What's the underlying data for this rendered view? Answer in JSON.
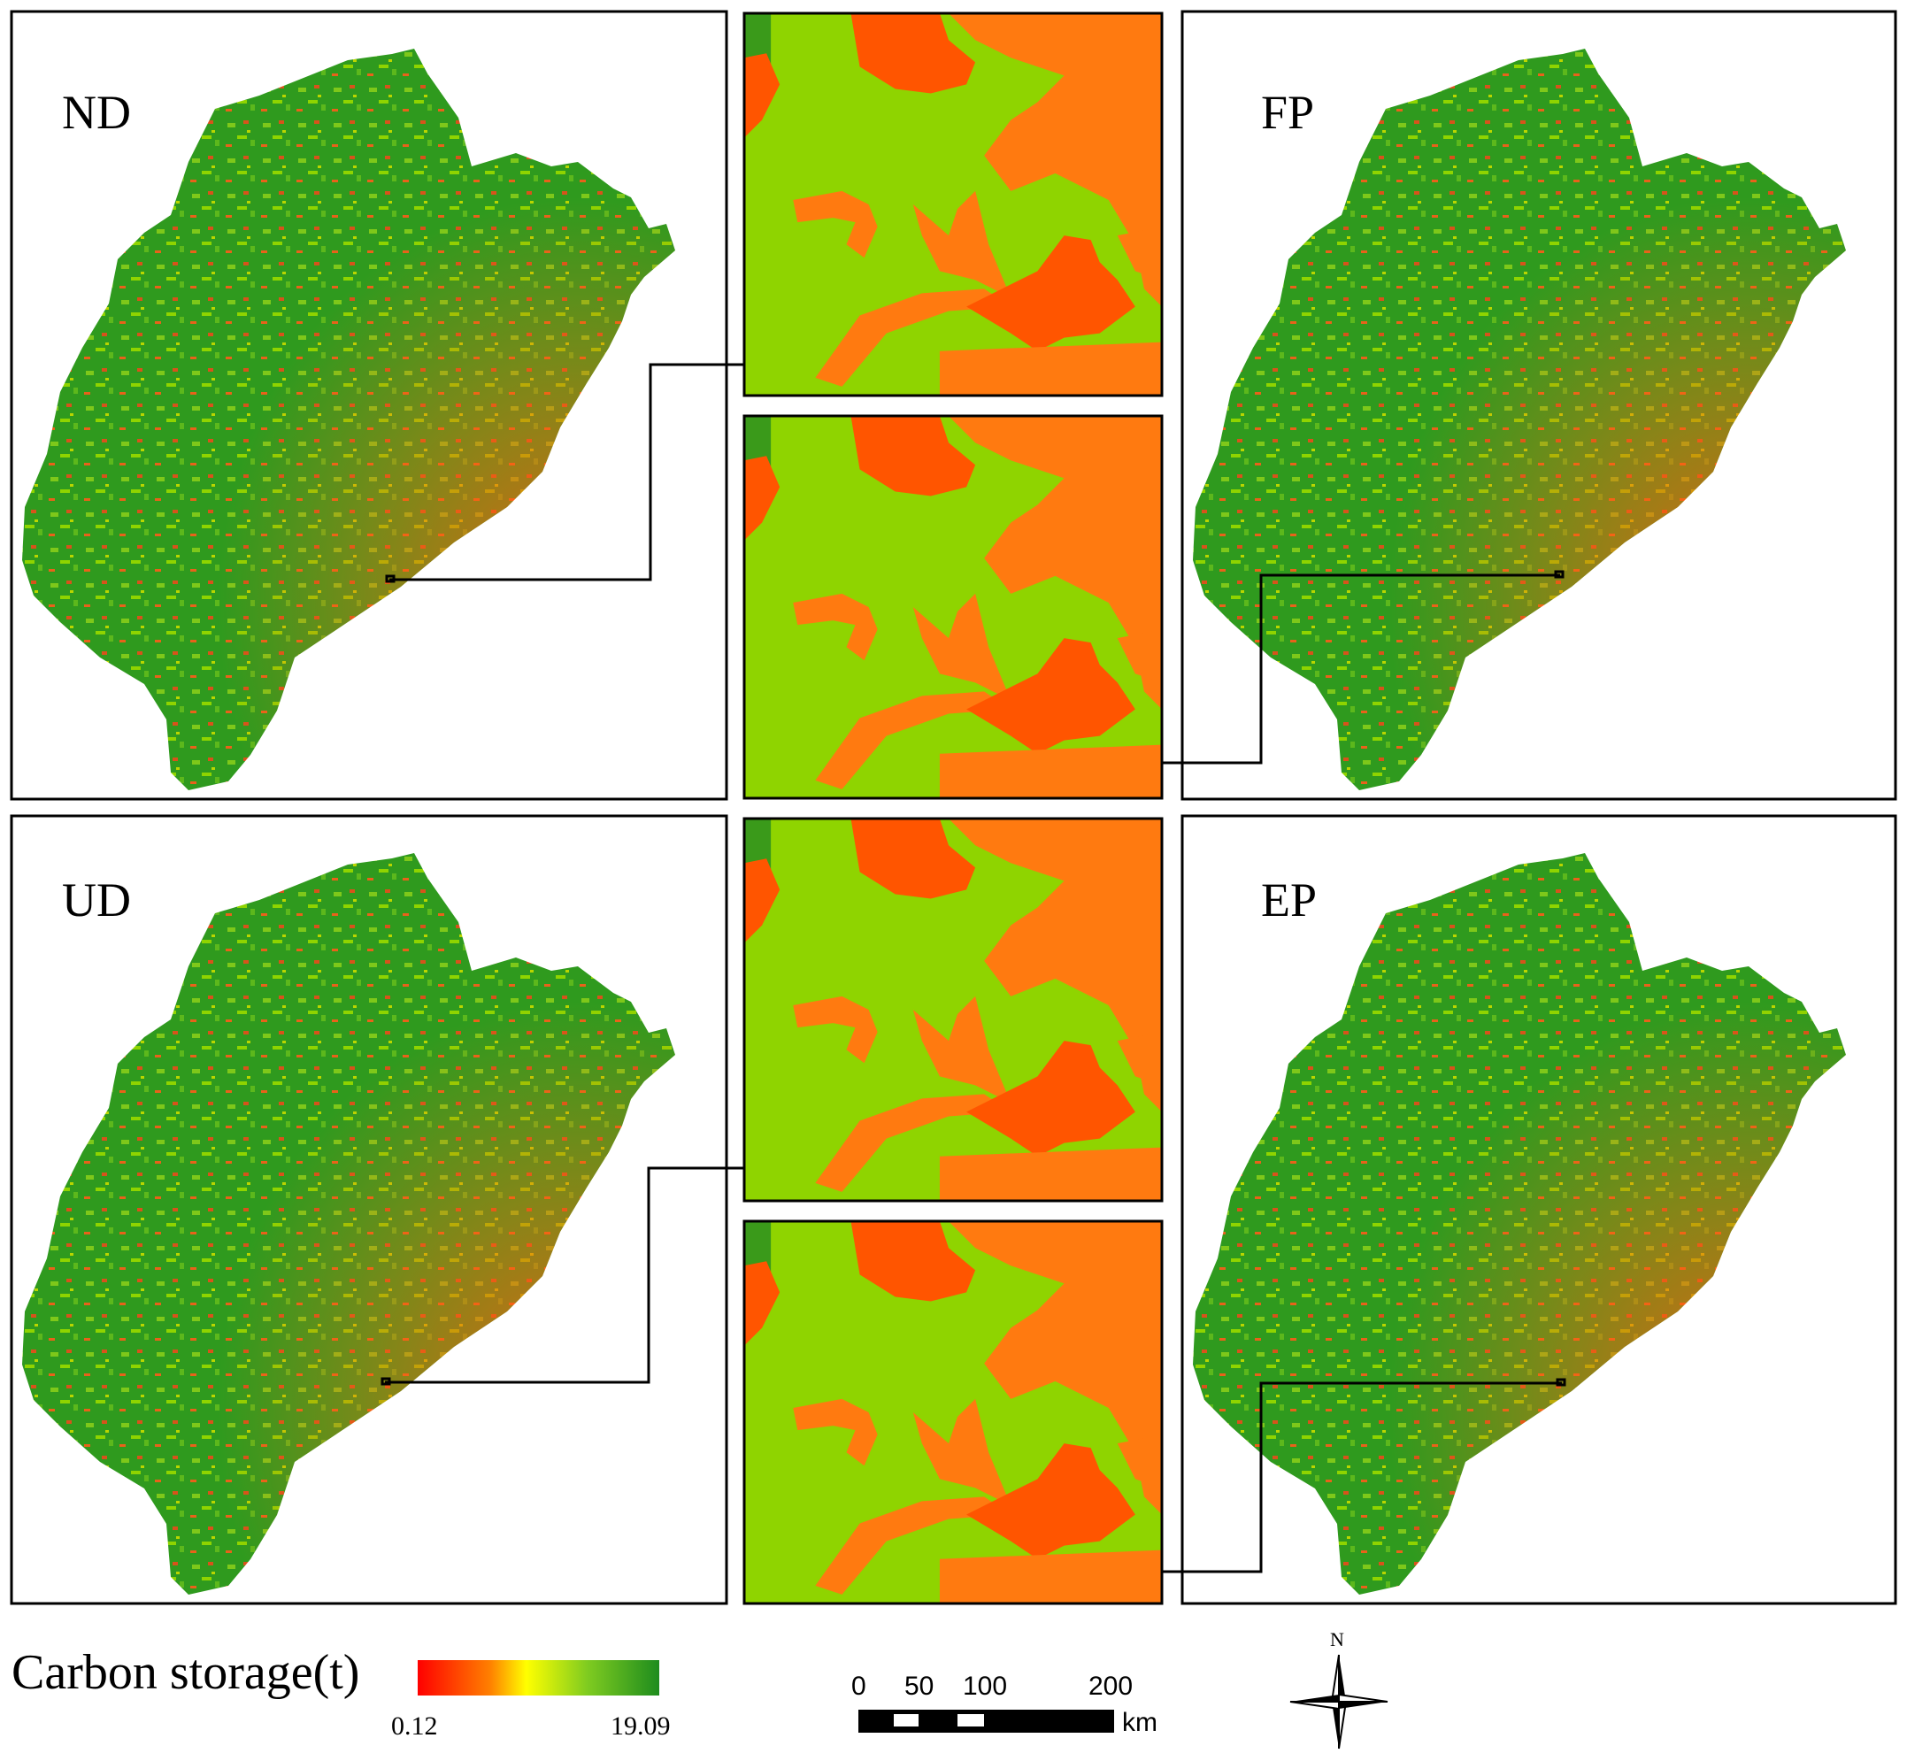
{
  "panels": [
    {
      "id": "nd",
      "label": "ND"
    },
    {
      "id": "fp",
      "label": "FP"
    },
    {
      "id": "ud",
      "label": "UD"
    },
    {
      "id": "ep",
      "label": "EP"
    }
  ],
  "legend": {
    "title": "Carbon storage(t)",
    "min": "0.12",
    "max": "19.09",
    "gradient_colors": [
      "#ff0000",
      "#ff8000",
      "#ffff00",
      "#80cc20",
      "#1e8c1e"
    ]
  },
  "scale_bar": {
    "ticks": [
      "0",
      "50",
      "100",
      "200"
    ],
    "unit": "km"
  },
  "north_arrow": {
    "label": "N"
  },
  "colors": {
    "forest_dark": "#2e9a1e",
    "forest_light": "#8fd400",
    "urban_orange": "#ff7a10",
    "urban_red": "#ff5000",
    "coastal_red": "#ff3a10"
  }
}
